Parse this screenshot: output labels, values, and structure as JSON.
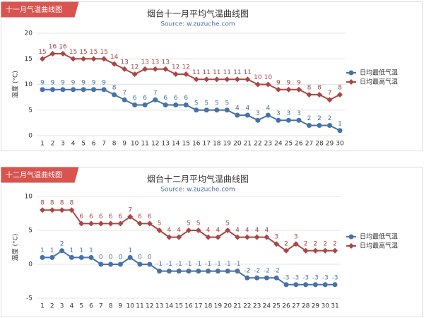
{
  "chart_data": [
    {
      "type": "line",
      "tab": "十一月气温曲线图",
      "title": "烟台十一月平均气温曲线图",
      "subtitle": "Source: w.zuzuche.com",
      "y_label": "温度 (°C)",
      "categories": [
        1,
        2,
        3,
        4,
        5,
        6,
        7,
        8,
        9,
        10,
        11,
        12,
        13,
        14,
        15,
        16,
        17,
        18,
        19,
        20,
        21,
        22,
        23,
        24,
        25,
        26,
        27,
        28,
        29,
        30
      ],
      "series": [
        {
          "name": "日均最低气温",
          "color": "#4572a7",
          "values": [
            9,
            9,
            9,
            9,
            9,
            9,
            9,
            8,
            7,
            6,
            6,
            7,
            6,
            6,
            6,
            5,
            5,
            5,
            5,
            4,
            4,
            3,
            4,
            3,
            3,
            3,
            2,
            2,
            2,
            1
          ]
        },
        {
          "name": "日均最高气温",
          "color": "#aa4643",
          "values": [
            15,
            16,
            16,
            15,
            15,
            15,
            15,
            14,
            13,
            12,
            13,
            13,
            13,
            12,
            12,
            11,
            11,
            11,
            11,
            11,
            11,
            10,
            10,
            9,
            9,
            9,
            8,
            8,
            7,
            8
          ]
        }
      ],
      "ylim": [
        0,
        20
      ],
      "yticks": [
        0,
        5,
        10,
        15,
        20
      ],
      "grid": true,
      "legend": "right"
    },
    {
      "type": "line",
      "tab": "十二月气温曲线图",
      "title": "烟台十二月平均气温曲线图",
      "subtitle": "Source: w.zuzuche.com",
      "y_label": "温度 (°C)",
      "categories": [
        1,
        2,
        3,
        4,
        5,
        6,
        7,
        8,
        9,
        10,
        11,
        12,
        13,
        14,
        15,
        16,
        17,
        18,
        19,
        20,
        21,
        22,
        23,
        24,
        25,
        26,
        27,
        28,
        29,
        30,
        31
      ],
      "series": [
        {
          "name": "日均最低气温",
          "color": "#4572a7",
          "values": [
            1,
            1,
            2,
            1,
            1,
            1,
            0,
            0,
            0,
            1,
            0,
            0,
            -1,
            -1,
            -1,
            -1,
            -1,
            -1,
            -1,
            -1,
            -1,
            -2,
            -2,
            -2,
            -2,
            -3,
            -3,
            -3,
            -3,
            -3,
            -3
          ]
        },
        {
          "name": "日均最高气温",
          "color": "#aa4643",
          "values": [
            8,
            8,
            8,
            8,
            6,
            6,
            6,
            6,
            6,
            7,
            6,
            6,
            5,
            4,
            4,
            5,
            5,
            4,
            4,
            5,
            4,
            4,
            4,
            4,
            3,
            2,
            3,
            2,
            2,
            2,
            2
          ]
        }
      ],
      "ylim": [
        -5,
        10
      ],
      "yticks": [
        -5,
        0,
        5,
        10
      ],
      "grid": true,
      "legend": "right"
    }
  ]
}
